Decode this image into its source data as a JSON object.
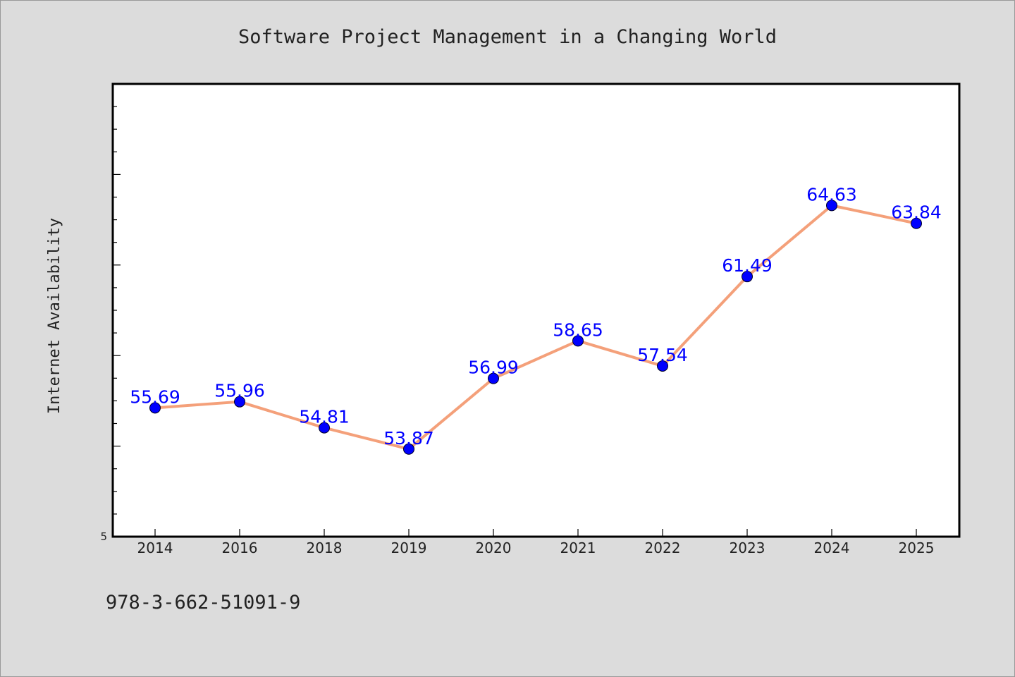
{
  "chart_data": {
    "type": "line",
    "title": "Software Project Management in a Changing World",
    "xlabel": "",
    "ylabel": "Internet Availability",
    "categories": [
      "2014",
      "2016",
      "2018",
      "2019",
      "2020",
      "2021",
      "2022",
      "2023",
      "2024",
      "2025"
    ],
    "series": [
      {
        "values": [
          55.69,
          55.96,
          54.81,
          53.87,
          56.99,
          58.65,
          57.54,
          61.49,
          64.63,
          63.84
        ]
      }
    ],
    "data_labels": [
      "55.69",
      "55.96",
      "54.81",
      "53.87",
      "56.99",
      "58.65",
      "57.54",
      "61.49",
      "64.63",
      "63.84"
    ],
    "ylim": [
      50,
      70
    ],
    "ytick_labels": [
      "5"
    ],
    "grid": false,
    "legend": "none"
  },
  "footer_text": "978-3-662-51091-9",
  "colors": {
    "background": "#dcdcdc",
    "plot_background": "#ffffff",
    "line": "#f4a07a",
    "marker": "#0000ff",
    "data_label": "#0000ff",
    "text": "#222222"
  }
}
